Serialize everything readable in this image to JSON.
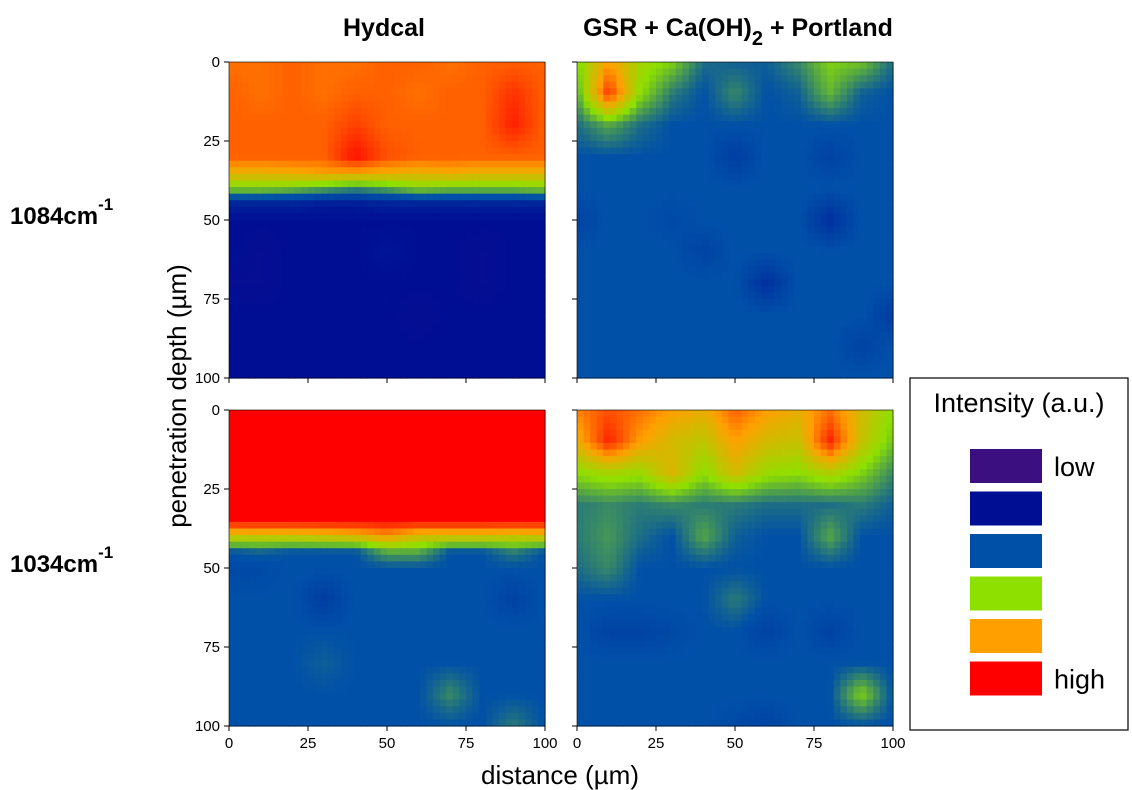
{
  "chart_data": {
    "type": "heatmap",
    "figure": {
      "column_titles": [
        "Hydcal",
        "GSR + Ca(OH)2 + Portland"
      ],
      "row_labels": [
        {
          "base": "1084cm",
          "sup": "-1"
        },
        {
          "base": "1034cm",
          "sup": "-1"
        }
      ],
      "xlabel": "distance (µm)",
      "ylabel": "penetration depth (µm)",
      "x_ticks": [
        0,
        25,
        50,
        75,
        100
      ],
      "y_ticks": [
        0,
        25,
        50,
        75,
        100
      ],
      "xlim": [
        0,
        100
      ],
      "ylim": [
        0,
        100
      ],
      "y_inverted": true
    },
    "colorscale": [
      {
        "level": 1,
        "color": "#3b0f80",
        "label": "low"
      },
      {
        "level": 2,
        "color": "#000e94",
        "label": ""
      },
      {
        "level": 3,
        "color": "#0050a8",
        "label": ""
      },
      {
        "level": 4,
        "color": "#8ee000",
        "label": ""
      },
      {
        "level": 5,
        "color": "#ffa000",
        "label": ""
      },
      {
        "level": 6,
        "color": "#ff0000",
        "label": "high"
      }
    ],
    "legend": {
      "title": "Intensity (a.u.)",
      "position": "right"
    },
    "panels": [
      {
        "id": "hydcal-1084",
        "column": "Hydcal",
        "row": "1084cm-1",
        "x": [
          0,
          10,
          20,
          30,
          40,
          50,
          60,
          70,
          80,
          90,
          100
        ],
        "y": [
          0,
          10,
          20,
          30,
          35,
          40,
          45,
          50,
          60,
          70,
          80,
          90,
          100
        ],
        "z": [
          [
            5.3,
            5.3,
            5.4,
            5.3,
            5.3,
            5.4,
            5.4,
            5.3,
            5.4,
            5.4,
            5.4
          ],
          [
            5.4,
            5.3,
            5.4,
            5.3,
            5.4,
            5.4,
            5.3,
            5.4,
            5.4,
            5.7,
            5.4
          ],
          [
            5.4,
            5.4,
            5.4,
            5.4,
            5.6,
            5.4,
            5.4,
            5.4,
            5.4,
            5.8,
            5.4
          ],
          [
            5.4,
            5.4,
            5.4,
            5.4,
            5.9,
            5.5,
            5.4,
            5.4,
            5.4,
            5.4,
            5.4
          ],
          [
            4.8,
            4.8,
            4.9,
            5.0,
            5.0,
            4.9,
            4.8,
            4.9,
            4.8,
            4.8,
            4.8
          ],
          [
            3.9,
            3.9,
            3.8,
            3.6,
            3.4,
            3.6,
            3.9,
            3.8,
            3.8,
            3.8,
            3.9
          ],
          [
            2.3,
            2.3,
            2.3,
            2.2,
            2.2,
            2.3,
            2.3,
            2.3,
            2.3,
            2.3,
            2.3
          ],
          [
            2.0,
            2.0,
            2.0,
            2.0,
            2.0,
            2.0,
            2.0,
            2.0,
            2.0,
            2.0,
            2.0
          ],
          [
            2.0,
            1.9,
            2.0,
            2.0,
            2.0,
            2.1,
            2.0,
            2.0,
            1.9,
            2.0,
            2.0
          ],
          [
            1.9,
            1.9,
            2.0,
            2.0,
            2.0,
            2.0,
            2.0,
            2.0,
            1.9,
            2.0,
            2.0
          ],
          [
            2.0,
            2.0,
            2.0,
            2.0,
            2.0,
            2.0,
            1.9,
            2.0,
            2.0,
            2.0,
            2.0
          ],
          [
            2.0,
            2.0,
            2.0,
            2.0,
            2.0,
            2.0,
            2.0,
            2.0,
            2.0,
            2.0,
            2.0
          ],
          [
            2.0,
            2.0,
            2.0,
            2.0,
            2.0,
            2.0,
            2.0,
            2.0,
            2.0,
            2.0,
            2.0
          ]
        ]
      },
      {
        "id": "gsr-1084",
        "column": "GSR + Ca(OH)2 + Portland",
        "row": "1084cm-1",
        "x": [
          0,
          10,
          20,
          30,
          40,
          50,
          60,
          70,
          80,
          90,
          100
        ],
        "y": [
          0,
          10,
          20,
          30,
          40,
          50,
          60,
          70,
          80,
          90,
          100
        ],
        "z": [
          [
            3.9,
            5.0,
            4.2,
            3.9,
            3.2,
            3.1,
            3.1,
            3.4,
            3.9,
            3.8,
            3.2
          ],
          [
            3.6,
            5.7,
            4.0,
            3.3,
            3.0,
            3.4,
            3.0,
            3.1,
            3.7,
            3.1,
            3.0
          ],
          [
            3.2,
            3.6,
            3.2,
            3.0,
            3.0,
            3.0,
            3.0,
            3.0,
            3.0,
            3.0,
            3.0
          ],
          [
            3.0,
            3.0,
            3.0,
            3.0,
            3.0,
            2.7,
            3.0,
            3.0,
            2.8,
            3.0,
            3.0
          ],
          [
            3.0,
            3.0,
            3.0,
            3.0,
            3.0,
            3.0,
            3.0,
            3.0,
            3.0,
            3.0,
            3.0
          ],
          [
            2.8,
            3.0,
            3.0,
            2.9,
            3.0,
            3.0,
            3.0,
            3.0,
            2.5,
            3.0,
            3.0
          ],
          [
            3.0,
            3.0,
            3.0,
            3.0,
            2.8,
            3.0,
            3.0,
            3.0,
            3.0,
            3.0,
            3.0
          ],
          [
            3.0,
            3.0,
            3.0,
            3.0,
            3.0,
            3.0,
            2.5,
            3.0,
            3.0,
            3.0,
            3.0
          ],
          [
            3.0,
            3.0,
            3.0,
            3.0,
            3.0,
            3.0,
            3.0,
            3.0,
            3.0,
            3.0,
            2.7
          ],
          [
            3.0,
            3.0,
            3.0,
            3.0,
            3.0,
            3.0,
            3.0,
            3.0,
            3.0,
            2.8,
            3.0
          ],
          [
            3.0,
            3.0,
            3.0,
            3.0,
            3.0,
            3.0,
            3.0,
            3.0,
            3.0,
            3.0,
            3.0
          ]
        ]
      },
      {
        "id": "hydcal-1034",
        "column": "Hydcal",
        "row": "1034cm-1",
        "x": [
          0,
          10,
          20,
          30,
          40,
          50,
          60,
          70,
          80,
          90,
          100
        ],
        "y": [
          0,
          10,
          20,
          30,
          35,
          40,
          45,
          50,
          60,
          70,
          80,
          90,
          100
        ],
        "z": [
          [
            6.0,
            6.0,
            6.0,
            6.0,
            6.0,
            6.0,
            6.0,
            6.0,
            6.0,
            6.0,
            6.0
          ],
          [
            6.0,
            6.0,
            6.0,
            6.0,
            6.0,
            6.0,
            6.0,
            6.0,
            6.0,
            6.0,
            6.0
          ],
          [
            6.0,
            6.0,
            6.0,
            6.0,
            6.0,
            6.0,
            6.0,
            6.0,
            6.0,
            6.0,
            6.0
          ],
          [
            6.0,
            6.0,
            6.0,
            6.0,
            6.0,
            6.0,
            6.0,
            6.0,
            6.0,
            6.0,
            6.0
          ],
          [
            6.0,
            6.0,
            6.0,
            6.0,
            6.0,
            6.0,
            6.0,
            6.0,
            6.0,
            6.0,
            6.0
          ],
          [
            4.5,
            4.5,
            4.5,
            4.6,
            4.7,
            5.0,
            4.6,
            4.6,
            4.6,
            4.5,
            4.6
          ],
          [
            3.0,
            3.1,
            3.0,
            3.0,
            3.0,
            3.6,
            3.6,
            3.0,
            3.0,
            3.3,
            3.0
          ],
          [
            2.9,
            2.9,
            3.0,
            3.0,
            3.0,
            3.0,
            3.0,
            3.0,
            3.0,
            3.0,
            3.0
          ],
          [
            3.0,
            3.0,
            3.0,
            2.7,
            3.0,
            3.0,
            3.0,
            3.0,
            3.0,
            2.8,
            3.0
          ],
          [
            3.0,
            3.0,
            3.0,
            3.0,
            3.0,
            3.0,
            3.0,
            3.0,
            3.0,
            3.0,
            3.0
          ],
          [
            3.0,
            3.0,
            3.0,
            3.1,
            3.0,
            3.0,
            3.0,
            3.0,
            3.0,
            3.0,
            3.0
          ],
          [
            3.0,
            3.0,
            3.0,
            3.0,
            3.0,
            3.0,
            3.0,
            3.4,
            3.0,
            3.0,
            3.0
          ],
          [
            3.0,
            3.0,
            3.0,
            3.0,
            3.0,
            3.0,
            3.0,
            3.0,
            3.0,
            3.3,
            3.0
          ]
        ]
      },
      {
        "id": "gsr-1034",
        "column": "GSR + Ca(OH)2 + Portland",
        "row": "1034cm-1",
        "x": [
          0,
          10,
          20,
          30,
          40,
          50,
          60,
          70,
          80,
          90,
          100
        ],
        "y": [
          0,
          10,
          20,
          30,
          40,
          50,
          60,
          70,
          80,
          90,
          100
        ],
        "z": [
          [
            5.2,
            5.5,
            5.3,
            5.0,
            4.8,
            5.4,
            5.0,
            4.8,
            5.3,
            4.6,
            4.0
          ],
          [
            4.8,
            5.8,
            5.0,
            4.6,
            4.4,
            5.0,
            4.6,
            4.5,
            5.8,
            4.5,
            3.8
          ],
          [
            4.0,
            4.2,
            4.1,
            4.7,
            4.0,
            4.6,
            4.1,
            4.0,
            4.3,
            3.9,
            3.4
          ],
          [
            3.3,
            3.4,
            3.3,
            3.4,
            3.3,
            3.3,
            3.2,
            3.2,
            3.2,
            3.3,
            3.1
          ],
          [
            3.3,
            3.5,
            3.2,
            3.0,
            3.6,
            3.1,
            3.0,
            3.0,
            3.6,
            3.0,
            3.0
          ],
          [
            3.2,
            3.4,
            3.0,
            3.0,
            3.0,
            3.0,
            3.0,
            3.0,
            3.0,
            3.0,
            3.0
          ],
          [
            3.0,
            3.0,
            3.0,
            3.0,
            3.0,
            3.3,
            3.0,
            3.0,
            3.0,
            3.0,
            3.0
          ],
          [
            3.0,
            2.8,
            2.8,
            2.9,
            3.0,
            3.0,
            2.8,
            3.0,
            2.8,
            3.0,
            3.0
          ],
          [
            3.0,
            3.0,
            3.0,
            3.0,
            3.0,
            3.0,
            3.0,
            3.0,
            3.0,
            3.0,
            3.0
          ],
          [
            3.0,
            3.0,
            3.0,
            3.0,
            3.0,
            3.0,
            3.0,
            3.0,
            3.0,
            3.9,
            3.0
          ],
          [
            3.0,
            3.0,
            3.0,
            3.0,
            3.0,
            2.9,
            2.8,
            3.0,
            3.0,
            3.0,
            3.0
          ]
        ]
      }
    ]
  }
}
